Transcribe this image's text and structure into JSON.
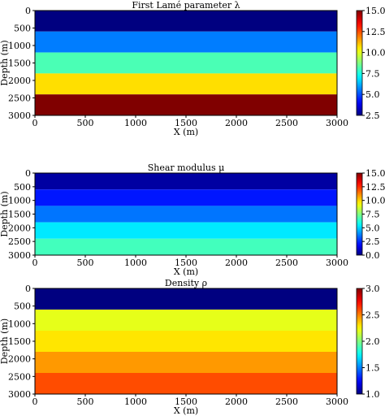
{
  "chart_data": [
    {
      "type": "heatmap",
      "title": "First Lamé parameter λ",
      "xlabel": "X (m)",
      "ylabel": "Depth (m)",
      "xlim": [
        0,
        3000
      ],
      "ylim": [
        0,
        3000
      ],
      "y_inverted": true,
      "x_ticks": [
        "0",
        "500",
        "1000",
        "1500",
        "2000",
        "2500",
        "3000"
      ],
      "y_ticks": [
        "0",
        "500",
        "1000",
        "1500",
        "2000",
        "2500",
        "3000"
      ],
      "colormap": "jet",
      "color_range": [
        2.5,
        15.0
      ],
      "colorbar_ticks": [
        "2.5",
        "5.0",
        "7.5",
        "10.0",
        "12.5",
        "15.0"
      ],
      "layers": [
        {
          "depth_top": 0,
          "depth_bottom": 600,
          "value": 2.5
        },
        {
          "depth_top": 600,
          "depth_bottom": 1200,
          "value": 5.6
        },
        {
          "depth_top": 1200,
          "depth_bottom": 1800,
          "value": 8.1
        },
        {
          "depth_top": 1800,
          "depth_bottom": 2400,
          "value": 10.7
        },
        {
          "depth_top": 2400,
          "depth_bottom": 3000,
          "value": 15.0
        }
      ]
    },
    {
      "type": "heatmap",
      "title": "Shear modulus μ",
      "xlabel": "X (m)",
      "ylabel": "Depth (m)",
      "xlim": [
        0,
        3000
      ],
      "ylim": [
        0,
        3000
      ],
      "y_inverted": true,
      "x_ticks": [
        "0",
        "500",
        "1000",
        "1500",
        "2000",
        "2500",
        "3000"
      ],
      "y_ticks": [
        "0",
        "500",
        "1000",
        "1500",
        "2000",
        "2500",
        "3000"
      ],
      "colormap": "jet",
      "color_range": [
        0.0,
        15.0
      ],
      "colorbar_ticks": [
        "0.0",
        "2.5",
        "5.0",
        "7.5",
        "10.0",
        "12.5",
        "15.0"
      ],
      "layers": [
        {
          "depth_top": 0,
          "depth_bottom": 600,
          "value": 0.5
        },
        {
          "depth_top": 600,
          "depth_bottom": 1200,
          "value": 2.2
        },
        {
          "depth_top": 1200,
          "depth_bottom": 1800,
          "value": 3.6
        },
        {
          "depth_top": 1800,
          "depth_bottom": 2400,
          "value": 5.3
        },
        {
          "depth_top": 2400,
          "depth_bottom": 3000,
          "value": 6.6
        }
      ]
    },
    {
      "type": "heatmap",
      "title": "Density ρ",
      "xlabel": "X (m)",
      "ylabel": "Depth (m)",
      "xlim": [
        0,
        3000
      ],
      "ylim": [
        0,
        3000
      ],
      "y_inverted": true,
      "x_ticks": [
        "0",
        "500",
        "1000",
        "1500",
        "2000",
        "2500",
        "3000"
      ],
      "y_ticks": [
        "0",
        "500",
        "1000",
        "1500",
        "2000",
        "2500",
        "3000"
      ],
      "colormap": "jet",
      "color_range": [
        1.0,
        3.0
      ],
      "colorbar_ticks": [
        "1.0",
        "1.5",
        "2.0",
        "2.5",
        "3.0"
      ],
      "layers": [
        {
          "depth_top": 0,
          "depth_bottom": 600,
          "value": 1.0
        },
        {
          "depth_top": 600,
          "depth_bottom": 1200,
          "value": 2.2
        },
        {
          "depth_top": 1200,
          "depth_bottom": 1800,
          "value": 2.3
        },
        {
          "depth_top": 1800,
          "depth_bottom": 2400,
          "value": 2.45
        },
        {
          "depth_top": 2400,
          "depth_bottom": 3000,
          "value": 2.6
        }
      ]
    }
  ]
}
